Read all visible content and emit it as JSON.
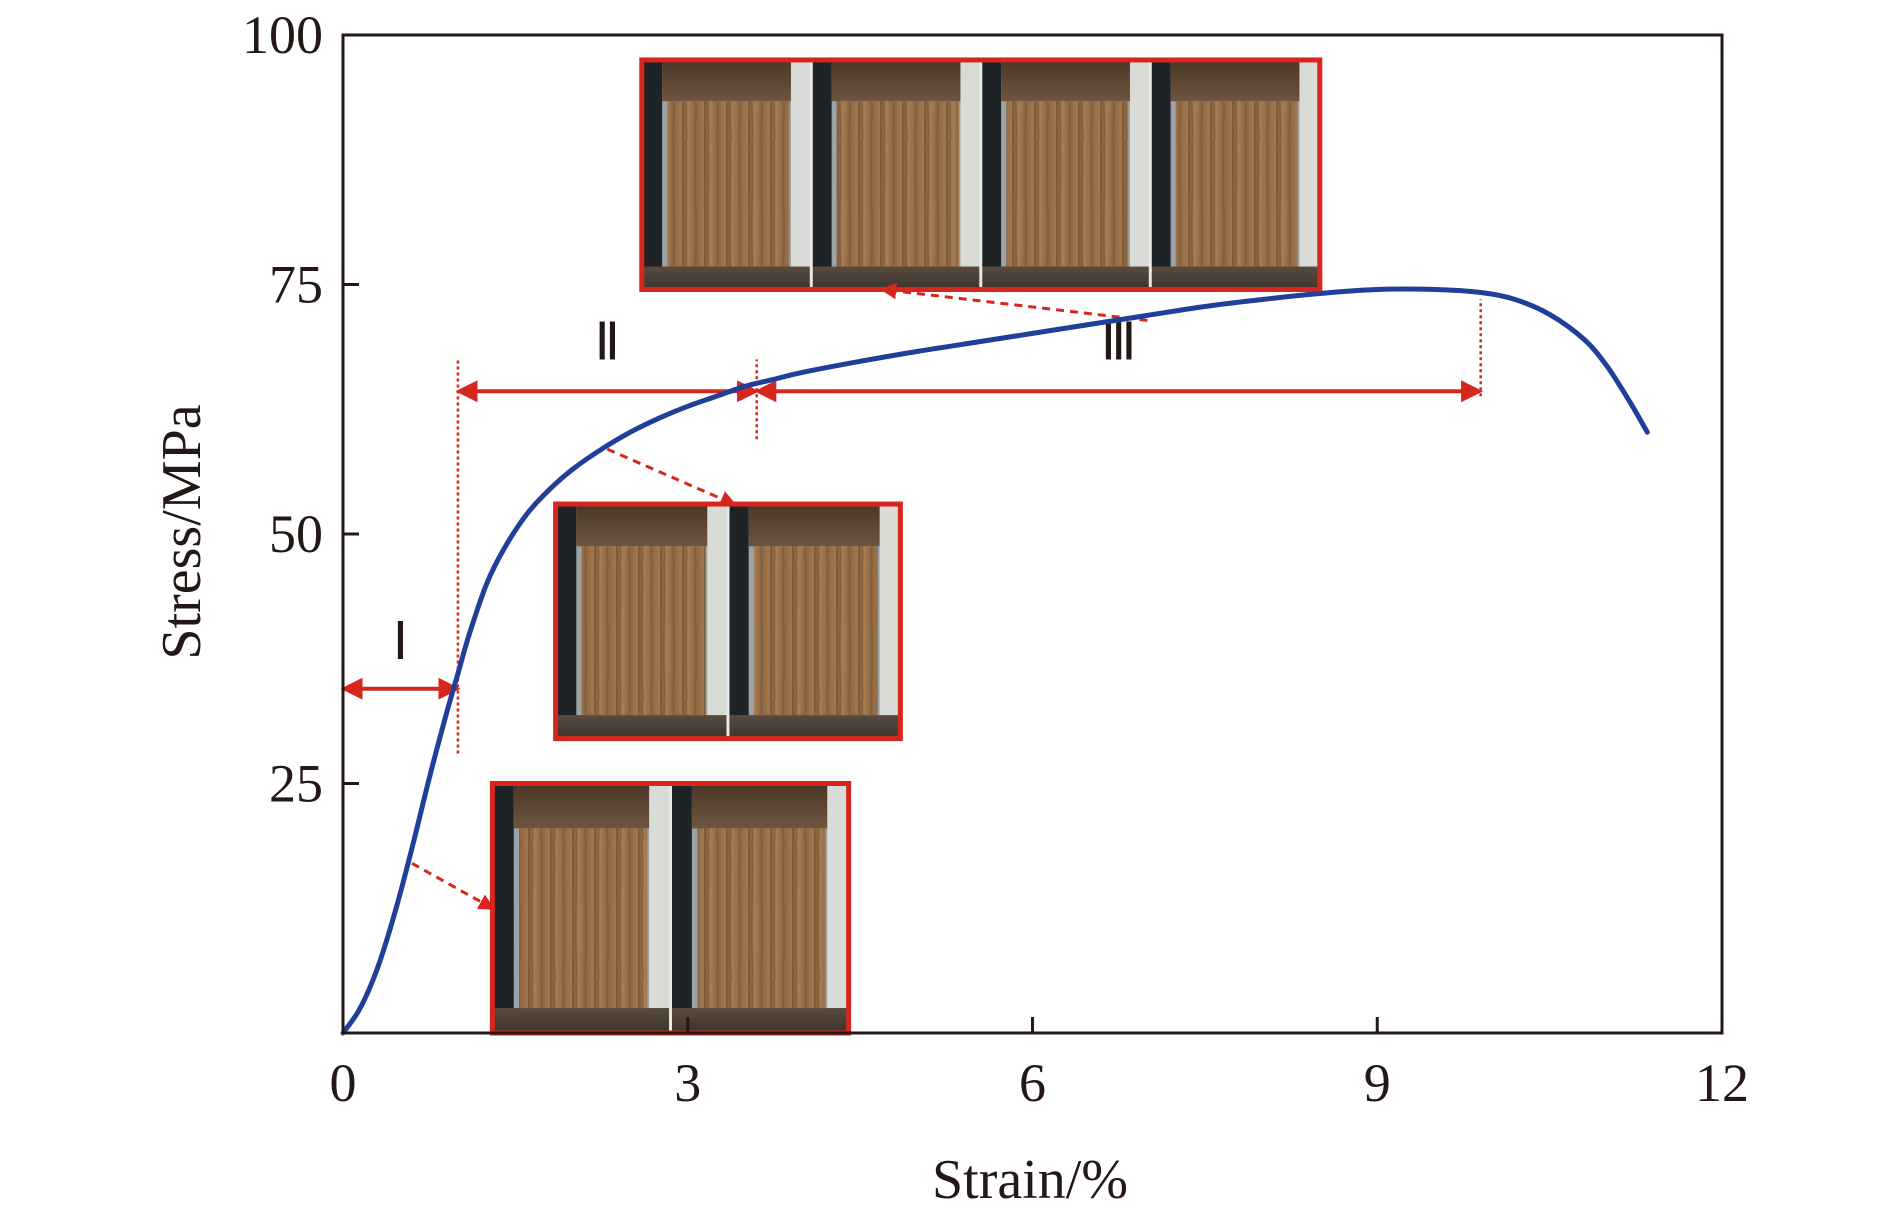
{
  "chart_data": {
    "type": "line",
    "xlabel": "Strain/%",
    "ylabel": "Stress/MPa",
    "xlim": [
      0,
      12
    ],
    "ylim": [
      0,
      100
    ],
    "x_ticks": [
      0,
      3,
      6,
      9,
      12
    ],
    "y_ticks": [
      25,
      50,
      75,
      100
    ],
    "x_tick_labels": [
      "0",
      "3",
      "6",
      "9",
      "12"
    ],
    "y_tick_labels": [
      "25",
      "50",
      "75",
      "100"
    ],
    "grid": false,
    "legend": "none",
    "colors": {
      "curve": "#1f3f99",
      "annotation": "#d7261e",
      "frame": "#231815",
      "wood_light": "#a77e52",
      "wood_dark": "#6b4a2b",
      "fixture_dark": "#1e2327",
      "fixture_light": "#d8dbd6"
    },
    "series": [
      {
        "x": [
          0,
          0.15,
          0.3,
          0.45,
          0.6,
          0.75,
          0.9,
          1.0,
          1.1,
          1.25,
          1.4,
          1.6,
          1.8,
          2.0,
          2.25,
          2.5,
          2.75,
          3.0,
          3.25,
          3.5,
          3.75,
          4.0,
          4.5,
          5.0,
          5.5,
          6.0,
          6.5,
          7.0,
          7.5,
          8.0,
          8.5,
          9.0,
          9.5,
          9.9,
          10.2,
          10.5,
          10.8,
          11.0,
          11.2,
          11.35
        ],
        "y": [
          0,
          2.5,
          6.5,
          12,
          18.5,
          25.5,
          32,
          36,
          40,
          45,
          48.5,
          52,
          54.5,
          56.5,
          58.5,
          60.2,
          61.6,
          62.8,
          63.8,
          64.8,
          65.5,
          66.2,
          67.3,
          68.3,
          69.2,
          70.1,
          71.0,
          71.9,
          72.8,
          73.5,
          74.1,
          74.5,
          74.5,
          74.2,
          73.5,
          72.0,
          69.5,
          66.8,
          63.2,
          60.2
        ]
      }
    ],
    "annotations": {
      "regions": [
        {
          "label": "Ⅰ",
          "x_start": 0,
          "x_end": 1.0,
          "arrow_y": 34.5,
          "label_y": 37.5
        },
        {
          "label": "Ⅱ",
          "x_start": 1.0,
          "x_end": 3.6,
          "arrow_y": 64.3,
          "label_y": 67.5
        },
        {
          "label": "Ⅲ",
          "x_start": 3.6,
          "x_end": 9.9,
          "arrow_y": 64.3,
          "label_y": 67.5
        }
      ],
      "boundaries": [
        {
          "x": 1.0,
          "y_from": 28,
          "y_to": 67.5
        },
        {
          "x": 3.6,
          "y_from": 59.5,
          "y_to": 67.5
        },
        {
          "x": 9.9,
          "y_from": 63.8,
          "y_to": 73.5
        }
      ],
      "insets": [
        {
          "name": "inset-stage-1",
          "frames": 2,
          "x0": 1.3,
          "x1": 4.4,
          "y_top": 25,
          "y_bottom": 0,
          "pointer_from": [
            0.6,
            17.0
          ],
          "pointer_to": [
            1.3,
            12.5
          ]
        },
        {
          "name": "inset-stage-2",
          "frames": 2,
          "x0": 1.85,
          "x1": 4.85,
          "y_top": 53.0,
          "y_bottom": 29.5,
          "pointer_from": [
            2.3,
            58.5
          ],
          "pointer_to": [
            3.4,
            53.0
          ]
        },
        {
          "name": "inset-stage-3",
          "frames": 4,
          "x0": 2.6,
          "x1": 8.5,
          "y_top": 97.5,
          "y_bottom": 74.5,
          "pointer_from": [
            7.0,
            71.4
          ],
          "pointer_to": [
            4.7,
            74.5
          ]
        }
      ]
    }
  }
}
